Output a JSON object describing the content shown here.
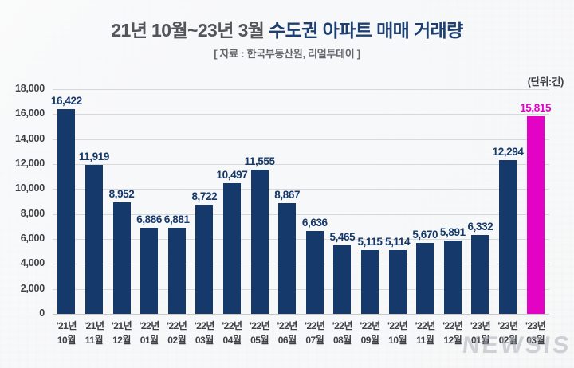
{
  "header": {
    "title_period": "21년 10월~23년 3월 ",
    "title_main": "수도권 아파트 매매 거래량",
    "source": "[ 자료 : 한국부동산원, 리얼투데이 ]",
    "unit_label": "(단위:건)"
  },
  "watermark": "NEWSIS",
  "colors": {
    "bar": "#16396B",
    "bar_highlight": "#E203C4",
    "value_label": "#16396B",
    "value_label_highlight": "#E203C4",
    "title_period": "#53555A",
    "title_main": "#1D3F6F",
    "source_text": "#65676C",
    "axis_text": "#3E4045",
    "grid": "#D7D8DA",
    "baseline": "#C6C7C9",
    "background": "#F5F6F7"
  },
  "chart_data": {
    "type": "bar",
    "title": "21년 10월~23년 3월 수도권 아파트 매매 거래량",
    "source": "한국부동산원, 리얼투데이",
    "unit": "건",
    "categories": [
      [
        "'21년",
        "10월"
      ],
      [
        "'21년",
        "11월"
      ],
      [
        "'21년",
        "12월"
      ],
      [
        "'22년",
        "01월"
      ],
      [
        "'22년",
        "02월"
      ],
      [
        "'22년",
        "03월"
      ],
      [
        "'22년",
        "04월"
      ],
      [
        "'22년",
        "05월"
      ],
      [
        "'22년",
        "06월"
      ],
      [
        "'22년",
        "07월"
      ],
      [
        "'22년",
        "08월"
      ],
      [
        "'22년",
        "09월"
      ],
      [
        "'22년",
        "10월"
      ],
      [
        "'22년",
        "11월"
      ],
      [
        "'22년",
        "12월"
      ],
      [
        "'23년",
        "01월"
      ],
      [
        "'23년",
        "02월"
      ],
      [
        "'23년",
        "03월"
      ]
    ],
    "values": [
      16422,
      11919,
      8952,
      6886,
      6881,
      8722,
      10497,
      11555,
      8867,
      6636,
      5465,
      5115,
      5114,
      5670,
      5891,
      6332,
      12294,
      15815
    ],
    "value_labels": [
      "16,422",
      "11,919",
      "8,952",
      "6,886",
      "6,881",
      "8,722",
      "10,497",
      "11,555",
      "8,867",
      "6,636",
      "5,465",
      "5,115",
      "5,114",
      "5,670",
      "5,891",
      "6,332",
      "12,294",
      "15,815"
    ],
    "highlight_index": 17,
    "ylim": [
      0,
      18000
    ],
    "yticks": [
      0,
      2000,
      4000,
      6000,
      8000,
      10000,
      12000,
      14000,
      16000,
      18000
    ],
    "ytick_labels": [
      "0",
      "2,000",
      "4,000",
      "6,000",
      "8,000",
      "10,000",
      "12,000",
      "14,000",
      "16,000",
      "18,000"
    ],
    "grid": true,
    "legend": false,
    "data_labels": true
  }
}
